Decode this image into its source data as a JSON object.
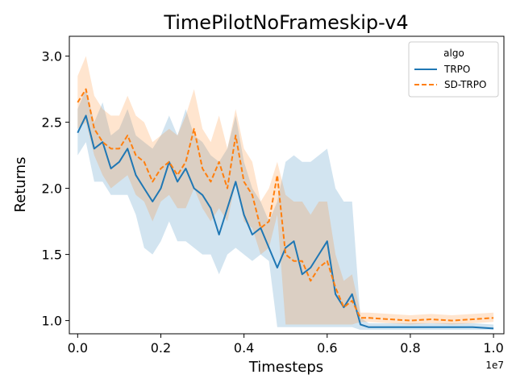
{
  "chart_data": {
    "type": "line",
    "title": "TimePilotNoFrameskip-v4",
    "xlabel": "Timesteps",
    "ylabel": "Returns",
    "x_offset_label": "1e7",
    "xlim": [
      -0.02,
      1.025
    ],
    "ylim": [
      0.9,
      3.15
    ],
    "x_ticks": [
      0.0,
      0.2,
      0.4,
      0.6,
      0.8,
      1.0
    ],
    "x_tick_labels": [
      "0.0",
      "0.2",
      "0.4",
      "0.6",
      "0.8",
      "1.0"
    ],
    "y_ticks": [
      1.0,
      1.5,
      2.0,
      2.5,
      3.0
    ],
    "y_tick_labels": [
      "1.0",
      "1.5",
      "2.0",
      "2.5",
      "3.0"
    ],
    "grid": false,
    "legend": {
      "title": "algo",
      "position": "top-right"
    },
    "series": [
      {
        "name": "TRPO",
        "color": "#1f77b4",
        "style": "solid",
        "x": [
          0.0,
          0.02,
          0.04,
          0.06,
          0.08,
          0.1,
          0.12,
          0.14,
          0.16,
          0.18,
          0.2,
          0.22,
          0.24,
          0.26,
          0.28,
          0.3,
          0.32,
          0.34,
          0.36,
          0.38,
          0.4,
          0.42,
          0.44,
          0.46,
          0.48,
          0.5,
          0.52,
          0.54,
          0.56,
          0.58,
          0.6,
          0.62,
          0.64,
          0.66,
          0.68,
          0.7,
          0.75,
          0.8,
          0.85,
          0.9,
          0.95,
          1.0
        ],
        "y": [
          2.42,
          2.55,
          2.3,
          2.35,
          2.15,
          2.2,
          2.3,
          2.1,
          2.0,
          1.9,
          2.0,
          2.2,
          2.05,
          2.15,
          2.0,
          1.95,
          1.85,
          1.65,
          1.85,
          2.05,
          1.8,
          1.65,
          1.7,
          1.55,
          1.4,
          1.55,
          1.6,
          1.35,
          1.4,
          1.5,
          1.6,
          1.2,
          1.1,
          1.2,
          0.97,
          0.95,
          0.95,
          0.95,
          0.95,
          0.95,
          0.95,
          0.94
        ],
        "lower": [
          2.25,
          2.35,
          2.05,
          2.05,
          1.95,
          1.95,
          1.95,
          1.8,
          1.55,
          1.5,
          1.6,
          1.75,
          1.6,
          1.6,
          1.55,
          1.5,
          1.5,
          1.35,
          1.5,
          1.55,
          1.5,
          1.45,
          1.5,
          1.45,
          0.95,
          0.95,
          0.95,
          0.95,
          0.95,
          0.95,
          0.95,
          0.95,
          0.95,
          0.95,
          0.93,
          0.93,
          0.93,
          0.93,
          0.93,
          0.93,
          0.93,
          0.93
        ],
        "upper": [
          2.6,
          2.75,
          2.5,
          2.65,
          2.4,
          2.45,
          2.6,
          2.4,
          2.35,
          2.3,
          2.4,
          2.55,
          2.4,
          2.6,
          2.4,
          2.35,
          2.25,
          2.2,
          2.3,
          2.55,
          2.2,
          2.0,
          1.9,
          1.75,
          1.9,
          2.2,
          2.25,
          2.2,
          2.2,
          2.25,
          2.3,
          2.0,
          1.9,
          1.9,
          1.02,
          0.98,
          0.98,
          0.98,
          0.98,
          0.98,
          0.98,
          0.97
        ]
      },
      {
        "name": "SD-TRPO",
        "color": "#ff7f0e",
        "style": "dashed",
        "x": [
          0.0,
          0.02,
          0.04,
          0.06,
          0.08,
          0.1,
          0.12,
          0.14,
          0.16,
          0.18,
          0.2,
          0.22,
          0.24,
          0.26,
          0.28,
          0.3,
          0.32,
          0.34,
          0.36,
          0.38,
          0.4,
          0.42,
          0.44,
          0.46,
          0.48,
          0.5,
          0.52,
          0.54,
          0.56,
          0.58,
          0.6,
          0.62,
          0.64,
          0.66,
          0.68,
          0.7,
          0.75,
          0.8,
          0.85,
          0.9,
          0.95,
          1.0
        ],
        "y": [
          2.65,
          2.75,
          2.45,
          2.35,
          2.3,
          2.3,
          2.4,
          2.25,
          2.2,
          2.05,
          2.15,
          2.2,
          2.1,
          2.2,
          2.45,
          2.15,
          2.05,
          2.2,
          2.0,
          2.4,
          2.05,
          1.95,
          1.7,
          1.75,
          2.1,
          1.5,
          1.45,
          1.45,
          1.3,
          1.4,
          1.45,
          1.25,
          1.1,
          1.15,
          1.02,
          1.02,
          1.01,
          1.0,
          1.01,
          1.0,
          1.01,
          1.02
        ],
        "lower": [
          2.45,
          2.5,
          2.25,
          2.1,
          2.0,
          2.05,
          2.1,
          1.95,
          1.9,
          1.75,
          1.9,
          1.95,
          1.85,
          1.85,
          2.0,
          1.85,
          1.75,
          1.85,
          1.75,
          2.05,
          1.75,
          1.7,
          1.5,
          1.55,
          1.8,
          0.97,
          0.97,
          0.97,
          0.97,
          0.97,
          0.97,
          0.97,
          0.97,
          0.97,
          0.99,
          0.99,
          0.98,
          0.97,
          0.98,
          0.97,
          0.98,
          0.99
        ],
        "upper": [
          2.85,
          3.0,
          2.7,
          2.6,
          2.55,
          2.55,
          2.7,
          2.55,
          2.5,
          2.35,
          2.4,
          2.45,
          2.4,
          2.55,
          2.75,
          2.45,
          2.35,
          2.55,
          2.3,
          2.6,
          2.3,
          2.2,
          1.9,
          2.0,
          2.2,
          1.95,
          1.9,
          1.9,
          1.8,
          1.9,
          1.9,
          1.5,
          1.3,
          1.35,
          1.06,
          1.06,
          1.05,
          1.04,
          1.05,
          1.04,
          1.05,
          1.06
        ]
      }
    ]
  }
}
